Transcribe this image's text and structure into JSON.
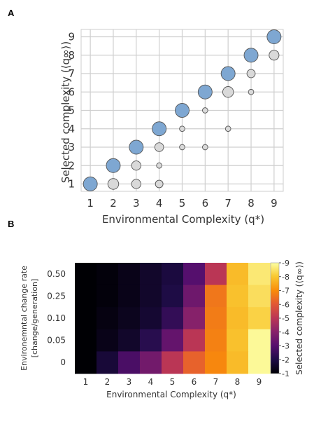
{
  "panel_labels": {
    "a": "A",
    "b": "B"
  },
  "chart_data": [
    {
      "type": "scatter",
      "panel": "A",
      "xlabel": "Environmental Complexity (q*)",
      "ylabel": "Selected complexity (⟨q∞⟩)",
      "xlim": [
        0.6,
        9.4
      ],
      "ylim": [
        0.6,
        9.4
      ],
      "xticks": [
        1,
        2,
        3,
        4,
        5,
        6,
        7,
        8,
        9
      ],
      "yticks": [
        1,
        2,
        3,
        4,
        5,
        6,
        7,
        8,
        9
      ],
      "grid": true,
      "colors": {
        "selected": "#7ea7d2",
        "other": "#d9d9d9",
        "edge": "#555555"
      },
      "series": [
        {
          "kind": "selected",
          "points": [
            {
              "x": 1,
              "y": 1,
              "size": 1.0
            },
            {
              "x": 2,
              "y": 2,
              "size": 1.0
            },
            {
              "x": 3,
              "y": 3,
              "size": 1.0
            },
            {
              "x": 4,
              "y": 4,
              "size": 1.0
            },
            {
              "x": 5,
              "y": 5,
              "size": 1.0
            },
            {
              "x": 6,
              "y": 6,
              "size": 1.0
            },
            {
              "x": 7,
              "y": 7,
              "size": 1.0
            },
            {
              "x": 8,
              "y": 8,
              "size": 1.0
            },
            {
              "x": 9,
              "y": 9,
              "size": 1.0
            }
          ]
        },
        {
          "kind": "other",
          "points": [
            {
              "x": 2,
              "y": 1,
              "size": 0.6
            },
            {
              "x": 3,
              "y": 1,
              "size": 0.45
            },
            {
              "x": 3,
              "y": 2,
              "size": 0.45
            },
            {
              "x": 4,
              "y": 1,
              "size": 0.3
            },
            {
              "x": 4,
              "y": 2,
              "size": 0.15
            },
            {
              "x": 4,
              "y": 3,
              "size": 0.4
            },
            {
              "x": 5,
              "y": 3,
              "size": 0.15
            },
            {
              "x": 5,
              "y": 4,
              "size": 0.15
            },
            {
              "x": 6,
              "y": 3,
              "size": 0.15
            },
            {
              "x": 6,
              "y": 5,
              "size": 0.15
            },
            {
              "x": 7,
              "y": 4,
              "size": 0.15
            },
            {
              "x": 7,
              "y": 6,
              "size": 0.6
            },
            {
              "x": 8,
              "y": 6,
              "size": 0.15
            },
            {
              "x": 8,
              "y": 7,
              "size": 0.35
            },
            {
              "x": 9,
              "y": 8,
              "size": 0.5
            }
          ]
        }
      ]
    },
    {
      "type": "heatmap",
      "panel": "B",
      "xlabel": "Environmental Complexity (q*)",
      "ylabel_line1": "Environemntal change rate",
      "ylabel_line2": "[change/generation]",
      "colorbar_label": "Selected complexity (⟨q∞⟩)",
      "x_categories": [
        "1",
        "2",
        "3",
        "4",
        "5",
        "6",
        "7",
        "8",
        "9"
      ],
      "y_categories": [
        "0.50",
        "0.25",
        "0.10",
        "0.05",
        "0"
      ],
      "zlim": [
        1,
        9
      ],
      "colorbar_ticks": [
        1,
        2,
        3,
        4,
        5,
        6,
        7,
        8,
        9
      ],
      "colormap": "inferno",
      "values": [
        [
          1.0,
          1.1,
          1.3,
          1.6,
          1.9,
          3.0,
          5.0,
          7.8,
          8.6
        ],
        [
          1.0,
          1.1,
          1.3,
          1.6,
          2.0,
          3.5,
          6.6,
          7.9,
          8.4
        ],
        [
          1.0,
          1.2,
          1.4,
          1.7,
          2.4,
          4.0,
          6.7,
          7.8,
          8.2
        ],
        [
          1.0,
          1.3,
          1.6,
          2.2,
          3.3,
          5.0,
          6.8,
          7.9,
          8.9
        ],
        [
          1.0,
          1.8,
          2.8,
          3.6,
          5.0,
          6.2,
          6.9,
          7.8,
          8.9
        ]
      ]
    }
  ]
}
